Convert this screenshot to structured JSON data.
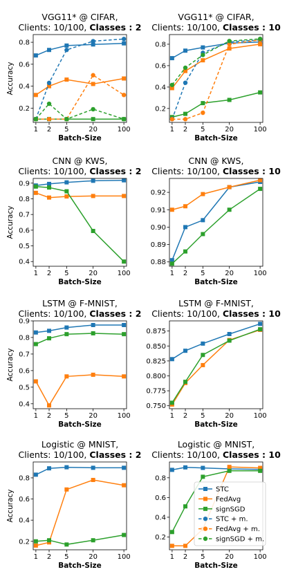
{
  "figure": {
    "x_label": "Batch-Size",
    "y_label": "Accuracy"
  },
  "legend": {
    "entries": [
      {
        "name": "STC",
        "color": "#1f77b4",
        "style": "solid"
      },
      {
        "name": "FedAvg",
        "color": "#ff7f0e",
        "style": "solid"
      },
      {
        "name": "signSGD",
        "color": "#2ca02c",
        "style": "solid"
      },
      {
        "name": "STC + m.",
        "color": "#1f77b4",
        "style": "dashed"
      },
      {
        "name": "FedAvg + m.",
        "color": "#ff7f0e",
        "style": "dashed"
      },
      {
        "name": "signSGD + m.",
        "color": "#2ca02c",
        "style": "dashed"
      }
    ]
  },
  "chart_data": [
    {
      "type": "line",
      "title_line1": "VGG11* @ CIFAR,",
      "title_line2_prefix": "Clients: 10/100, ",
      "title_line2_bold": "Classes : 2",
      "xlabel": "Batch-Size",
      "ylabel": "Accuracy",
      "x": [
        1,
        2,
        5,
        20,
        100
      ],
      "x_ticks": [
        "1",
        "2",
        "5",
        "20",
        "100"
      ],
      "x_scale": "log",
      "ylim": [
        0.07,
        0.87
      ],
      "y_ticks": [
        0.2,
        0.4,
        0.6,
        0.8
      ],
      "y_tick_labels": [
        "0.2",
        "0.4",
        "0.6",
        "0.8"
      ],
      "series": [
        {
          "name": "STC",
          "color": "#1f77b4",
          "dashed": false,
          "values": [
            0.68,
            0.73,
            0.77,
            0.78,
            0.79
          ]
        },
        {
          "name": "FedAvg",
          "color": "#ff7f0e",
          "dashed": false,
          "values": [
            0.32,
            0.4,
            0.46,
            0.42,
            0.47
          ]
        },
        {
          "name": "signSGD",
          "color": "#2ca02c",
          "dashed": false,
          "values": [
            0.1,
            0.1,
            0.1,
            0.1,
            0.1
          ]
        },
        {
          "name": "STC + m.",
          "color": "#1f77b4",
          "dashed": true,
          "values": [
            0.1,
            0.43,
            0.73,
            0.81,
            0.83
          ]
        },
        {
          "name": "FedAvg + m.",
          "color": "#ff7f0e",
          "dashed": true,
          "values": [
            0.1,
            0.1,
            0.1,
            0.5,
            0.32
          ]
        },
        {
          "name": "signSGD + m.",
          "color": "#2ca02c",
          "dashed": true,
          "values": [
            0.1,
            0.24,
            0.1,
            0.19,
            0.1
          ]
        }
      ]
    },
    {
      "type": "line",
      "title_line1": "VGG11* @ CIFAR,",
      "title_line2_prefix": "Clients: 10/100, ",
      "title_line2_bold": "Classes : 10",
      "xlabel": "Batch-Size",
      "ylabel": "",
      "x": [
        1,
        2,
        5,
        20,
        100
      ],
      "x_ticks": [
        "1",
        "2",
        "5",
        "20",
        "100"
      ],
      "x_scale": "log",
      "ylim": [
        0.07,
        0.89
      ],
      "y_ticks": [
        0.2,
        0.4,
        0.6,
        0.8
      ],
      "y_tick_labels": [
        "0.2",
        "0.4",
        "0.6",
        "0.8"
      ],
      "series": [
        {
          "name": "STC",
          "color": "#1f77b4",
          "dashed": false,
          "values": [
            0.67,
            0.74,
            0.77,
            0.81,
            0.82
          ]
        },
        {
          "name": "FedAvg",
          "color": "#ff7f0e",
          "dashed": false,
          "values": [
            0.39,
            0.55,
            0.65,
            0.76,
            0.8
          ]
        },
        {
          "name": "signSGD",
          "color": "#2ca02c",
          "dashed": false,
          "values": [
            0.12,
            0.15,
            0.25,
            0.28,
            0.35
          ]
        },
        {
          "name": "STC + m.",
          "color": "#1f77b4",
          "dashed": true,
          "values": [
            0.1,
            0.44,
            0.72,
            0.82,
            0.84
          ]
        },
        {
          "name": "FedAvg + m.",
          "color": "#ff7f0e",
          "dashed": true,
          "values": [
            0.1,
            0.1,
            0.16,
            0.8,
            0.84
          ]
        },
        {
          "name": "signSGD + m.",
          "color": "#2ca02c",
          "dashed": true,
          "values": [
            0.42,
            0.58,
            0.7,
            0.83,
            0.85
          ]
        }
      ]
    },
    {
      "type": "line",
      "title_line1": "CNN @ KWS,",
      "title_line2_prefix": "Clients: 10/100, ",
      "title_line2_bold": "Classes : 2",
      "xlabel": "Batch-Size",
      "ylabel": "Accuracy",
      "x": [
        1,
        2,
        5,
        20,
        100
      ],
      "x_ticks": [
        "1",
        "2",
        "5",
        "20",
        "100"
      ],
      "x_scale": "log",
      "ylim": [
        0.37,
        0.93
      ],
      "y_ticks": [
        0.4,
        0.5,
        0.6,
        0.7,
        0.8,
        0.9
      ],
      "y_tick_labels": [
        "0.4",
        "0.5",
        "0.6",
        "0.7",
        "0.8",
        "0.9"
      ],
      "series": [
        {
          "name": "STC",
          "color": "#1f77b4",
          "dashed": false,
          "values": [
            0.885,
            0.895,
            0.905,
            0.915,
            0.918
          ]
        },
        {
          "name": "FedAvg",
          "color": "#ff7f0e",
          "dashed": false,
          "values": [
            0.838,
            0.808,
            0.815,
            0.818,
            0.818
          ]
        },
        {
          "name": "signSGD",
          "color": "#2ca02c",
          "dashed": false,
          "values": [
            0.878,
            0.872,
            0.848,
            0.595,
            0.4
          ]
        }
      ]
    },
    {
      "type": "line",
      "title_line1": "CNN @ KWS,",
      "title_line2_prefix": "Clients: 10/100, ",
      "title_line2_bold": "Classes : 10",
      "xlabel": "Batch-Size",
      "ylabel": "",
      "x": [
        1,
        2,
        5,
        20,
        100
      ],
      "x_ticks": [
        "1",
        "2",
        "5",
        "20",
        "100"
      ],
      "x_scale": "log",
      "ylim": [
        0.8775,
        0.928
      ],
      "y_ticks": [
        0.88,
        0.89,
        0.9,
        0.91,
        0.92
      ],
      "y_tick_labels": [
        "0.88",
        "0.89",
        "0.90",
        "0.91",
        "0.92"
      ],
      "series": [
        {
          "name": "STC",
          "color": "#1f77b4",
          "dashed": false,
          "values": [
            0.881,
            0.9,
            0.904,
            0.923,
            0.926
          ]
        },
        {
          "name": "FedAvg",
          "color": "#ff7f0e",
          "dashed": false,
          "values": [
            0.91,
            0.912,
            0.919,
            0.923,
            0.927
          ]
        },
        {
          "name": "signSGD",
          "color": "#2ca02c",
          "dashed": false,
          "values": [
            0.879,
            0.886,
            0.896,
            0.91,
            0.922
          ]
        }
      ]
    },
    {
      "type": "line",
      "title_line1": "LSTM @ F-MNIST,",
      "title_line2_prefix": "Clients: 10/100, ",
      "title_line2_bold": "Classes : 2",
      "xlabel": "Batch-Size",
      "ylabel": "Accuracy",
      "x": [
        1,
        2,
        5,
        20,
        100
      ],
      "x_ticks": [
        "1",
        "2",
        "5",
        "20",
        "100"
      ],
      "x_scale": "log",
      "ylim": [
        0.37,
        0.9
      ],
      "y_ticks": [
        0.4,
        0.5,
        0.6,
        0.7,
        0.8,
        0.9
      ],
      "y_tick_labels": [
        "0.4",
        "0.5",
        "0.6",
        "0.7",
        "0.8",
        "0.9"
      ],
      "series": [
        {
          "name": "STC",
          "color": "#1f77b4",
          "dashed": false,
          "values": [
            0.83,
            0.84,
            0.86,
            0.875,
            0.875
          ]
        },
        {
          "name": "FedAvg",
          "color": "#ff7f0e",
          "dashed": false,
          "values": [
            0.535,
            0.39,
            0.565,
            0.575,
            0.565
          ]
        },
        {
          "name": "signSGD",
          "color": "#2ca02c",
          "dashed": false,
          "values": [
            0.76,
            0.795,
            0.82,
            0.825,
            0.82
          ]
        }
      ]
    },
    {
      "type": "line",
      "title_line1": "LSTM @ F-MNIST,",
      "title_line2_prefix": "Clients: 10/100, ",
      "title_line2_bold": "Classes : 10",
      "xlabel": "Batch-Size",
      "ylabel": "",
      "x": [
        1,
        2,
        5,
        20,
        100
      ],
      "x_ticks": [
        "1",
        "2",
        "5",
        "20",
        "100"
      ],
      "x_scale": "log",
      "ylim": [
        0.745,
        0.892
      ],
      "y_ticks": [
        0.75,
        0.775,
        0.8,
        0.825,
        0.85,
        0.875
      ],
      "y_tick_labels": [
        "0.750",
        "0.775",
        "0.800",
        "0.825",
        "0.850",
        "0.875"
      ],
      "series": [
        {
          "name": "STC",
          "color": "#1f77b4",
          "dashed": false,
          "values": [
            0.828,
            0.842,
            0.854,
            0.87,
            0.887
          ]
        },
        {
          "name": "FedAvg",
          "color": "#ff7f0e",
          "dashed": false,
          "values": [
            0.752,
            0.788,
            0.818,
            0.86,
            0.877
          ]
        },
        {
          "name": "signSGD",
          "color": "#2ca02c",
          "dashed": false,
          "values": [
            0.755,
            0.79,
            0.835,
            0.859,
            0.878
          ]
        }
      ]
    },
    {
      "type": "line",
      "title_line1": "Logistic @ MNIST,",
      "title_line2_prefix": "Clients: 10/100, ",
      "title_line2_bold": "Classes : 2",
      "xlabel": "Batch-Size",
      "ylabel": "Accuracy",
      "x": [
        1,
        2,
        5,
        20,
        100
      ],
      "x_ticks": [
        "1",
        "2",
        "5",
        "20",
        "100"
      ],
      "x_scale": "log",
      "ylim": [
        0.12,
        0.95
      ],
      "y_ticks": [
        0.2,
        0.4,
        0.6,
        0.8
      ],
      "y_tick_labels": [
        "0.2",
        "0.4",
        "0.6",
        "0.8"
      ],
      "series": [
        {
          "name": "STC",
          "color": "#1f77b4",
          "dashed": false,
          "values": [
            0.83,
            0.89,
            0.9,
            0.895,
            0.895
          ]
        },
        {
          "name": "FedAvg",
          "color": "#ff7f0e",
          "dashed": false,
          "values": [
            0.16,
            0.19,
            0.69,
            0.78,
            0.73
          ]
        },
        {
          "name": "signSGD",
          "color": "#2ca02c",
          "dashed": false,
          "values": [
            0.2,
            0.21,
            0.17,
            0.21,
            0.26
          ]
        }
      ]
    },
    {
      "type": "line",
      "title_line1": "Logistic @ MNIST,",
      "title_line2_prefix": "Clients: 10/100, ",
      "title_line2_bold": "Classes : 10",
      "xlabel": "Batch-Size",
      "ylabel": "",
      "x": [
        1,
        2,
        5,
        20,
        100
      ],
      "x_ticks": [
        "1",
        "2",
        "5",
        "20",
        "100"
      ],
      "x_scale": "log",
      "ylim": [
        0.07,
        0.96
      ],
      "y_ticks": [
        0.2,
        0.4,
        0.6,
        0.8
      ],
      "y_tick_labels": [
        "0.2",
        "0.4",
        "0.6",
        "0.8"
      ],
      "series": [
        {
          "name": "STC",
          "color": "#1f77b4",
          "dashed": false,
          "values": [
            0.88,
            0.905,
            0.9,
            0.89,
            0.885
          ]
        },
        {
          "name": "FedAvg",
          "color": "#ff7f0e",
          "dashed": false,
          "values": [
            0.11,
            0.11,
            0.28,
            0.91,
            0.9
          ]
        },
        {
          "name": "signSGD",
          "color": "#2ca02c",
          "dashed": false,
          "values": [
            0.25,
            0.51,
            0.81,
            0.87,
            0.87
          ]
        }
      ]
    }
  ]
}
